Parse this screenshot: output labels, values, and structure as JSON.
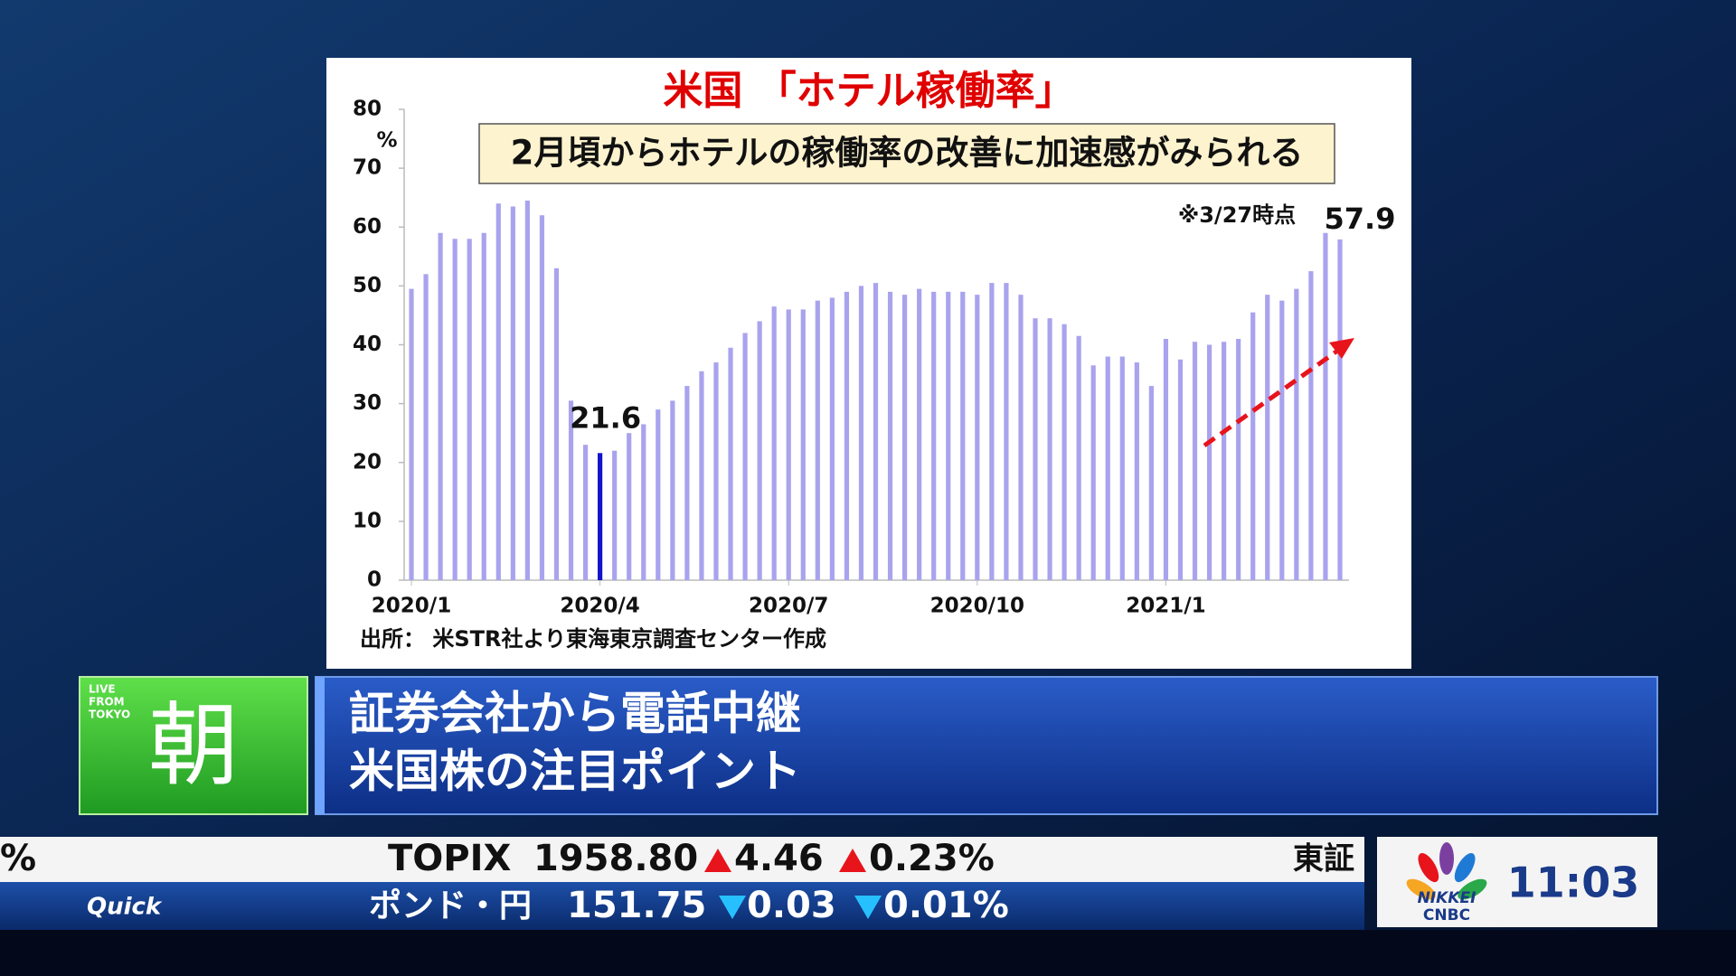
{
  "chart_data": {
    "type": "bar",
    "title": "米国 「ホテル稼働率」",
    "subtitle": "2月頃からホテルの稼働率の改善に加速感がみられる",
    "y_label": "%",
    "note": "※3/27時点",
    "source": "出所： 米STR社より東海東京調査センター作成",
    "categories": [
      "2020/1",
      null,
      null,
      null,
      null,
      null,
      null,
      null,
      null,
      null,
      null,
      null,
      null,
      "2020/4",
      null,
      null,
      null,
      null,
      null,
      null,
      null,
      null,
      null,
      null,
      null,
      null,
      "2020/7",
      null,
      null,
      null,
      null,
      null,
      null,
      null,
      null,
      null,
      null,
      null,
      null,
      "2020/10",
      null,
      null,
      null,
      null,
      null,
      null,
      null,
      null,
      null,
      null,
      null,
      null,
      "2021/1",
      null,
      null,
      null,
      null,
      null,
      null,
      null,
      null,
      null,
      null,
      null,
      null
    ],
    "values": [
      49.5,
      52,
      59,
      58,
      58,
      59,
      64,
      63.5,
      64.5,
      62,
      53,
      30.5,
      23,
      21.6,
      22,
      25,
      26.5,
      29,
      30.5,
      33,
      35.5,
      37,
      39.5,
      42,
      44,
      46.5,
      46,
      46,
      47.5,
      48,
      49,
      50,
      50.5,
      49,
      48.5,
      49.5,
      49,
      49,
      49,
      48.5,
      50.5,
      50.5,
      48.5,
      44.5,
      44.5,
      43.5,
      41.5,
      36.5,
      38,
      38,
      37,
      33,
      41,
      37.5,
      40.5,
      40,
      40.5,
      41,
      45.5,
      48.5,
      47.5,
      49.5,
      52.5,
      59,
      57.9
    ],
    "value_labels": [
      null,
      null,
      null,
      null,
      null,
      null,
      null,
      null,
      null,
      null,
      null,
      null,
      null,
      "21.6",
      null,
      null,
      null,
      null,
      null,
      null,
      null,
      null,
      null,
      null,
      null,
      null,
      null,
      null,
      null,
      null,
      null,
      null,
      null,
      null,
      null,
      null,
      null,
      null,
      null,
      null,
      null,
      null,
      null,
      null,
      null,
      null,
      null,
      null,
      null,
      null,
      null,
      null,
      null,
      null,
      null,
      null,
      null,
      null,
      null,
      null,
      null,
      null,
      null,
      null,
      "57.9"
    ],
    "color": "#a9a3ee",
    "highlight_color": "#1414c8",
    "ylim": [
      0,
      80
    ],
    "yticks": [
      0,
      10,
      20,
      30,
      40,
      50,
      60,
      70,
      80
    ],
    "grid": false
  },
  "lower_third": {
    "badge": [
      "LIVE",
      "FROM",
      "TOKYO"
    ],
    "program": "朝",
    "headline": [
      "証券会社から電話中継",
      "米国株の注目ポイント"
    ]
  },
  "ticker": {
    "row1": {
      "left": "%",
      "name": "TOPIX",
      "value": "1958.80",
      "change": "4.46",
      "change_pct": "0.23%",
      "next": "東証"
    },
    "row2": {
      "source": "Quick",
      "name": "ポンド・円",
      "value": "151.75",
      "change": "0.03",
      "change_pct": "0.01%"
    }
  },
  "logo": {
    "line1": "NIKKEI",
    "line2": "CNBC"
  },
  "clock": "11:03"
}
